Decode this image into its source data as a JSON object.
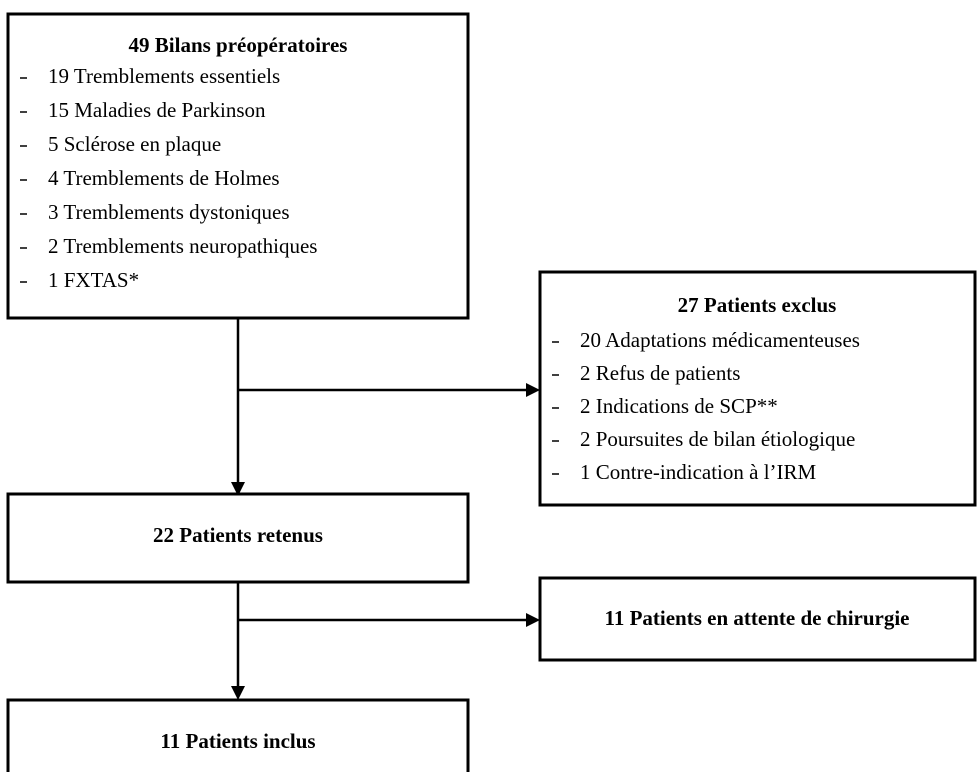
{
  "nodes": [
    {
      "title": "49 Bilans préopératoires",
      "items": [
        "19 Tremblements essentiels",
        "15 Maladies de Parkinson",
        "5 Sclérose en plaque",
        "4 Tremblements de Holmes",
        "3 Tremblements dystoniques",
        "2 Tremblements neuropathiques",
        "1 FXTAS*"
      ]
    },
    {
      "title": "27 Patients exclus",
      "items": [
        "20 Adaptations médicamenteuses",
        "2 Refus de patients",
        "2 Indications de SCP**",
        "2 Poursuites de bilan étiologique",
        "1 Contre-indication à l’IRM"
      ]
    },
    {
      "title": "22 Patients retenus"
    },
    {
      "title": "11 Patients en attente de chirurgie"
    },
    {
      "title": "11 Patients inclus"
    }
  ]
}
